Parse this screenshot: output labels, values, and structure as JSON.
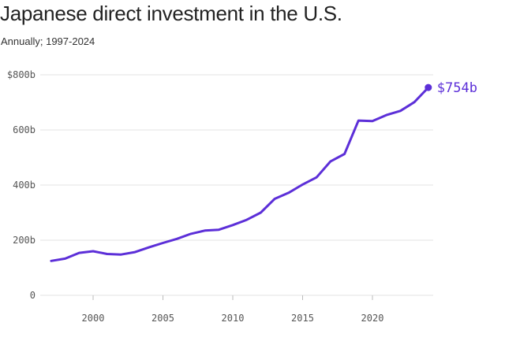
{
  "title": "Japanese direct investment in the U.S.",
  "subtitle": "Annually; 1997-2024",
  "colors": {
    "line": "#5c2fd8",
    "grid": "#e3e3e3",
    "text": "#555555"
  },
  "chart_data": {
    "type": "line",
    "title": "Japanese direct investment in the U.S.",
    "subtitle": "Annually; 1997-2024",
    "xlabel": "",
    "ylabel": "",
    "xlim": [
      1997,
      2024
    ],
    "ylim": [
      0,
      800
    ],
    "grid": true,
    "y_ticks": [
      0,
      200,
      400,
      600,
      800
    ],
    "y_tick_labels": [
      "0",
      "200b",
      "400b",
      "600b",
      "$800b"
    ],
    "x_ticks": [
      2000,
      2005,
      2010,
      2015,
      2020
    ],
    "x_tick_labels": [
      "2000",
      "2005",
      "2010",
      "2015",
      "2020"
    ],
    "series": [
      {
        "name": "Japanese direct investment",
        "x": [
          1997,
          1998,
          1999,
          2000,
          2001,
          2002,
          2003,
          2004,
          2005,
          2006,
          2007,
          2008,
          2009,
          2010,
          2011,
          2012,
          2013,
          2014,
          2015,
          2016,
          2017,
          2018,
          2019,
          2020,
          2021,
          2022,
          2023,
          2024
        ],
        "values": [
          125,
          133,
          154,
          160,
          150,
          148,
          157,
          174,
          190,
          205,
          223,
          235,
          238,
          255,
          274,
          300,
          350,
          372,
          402,
          428,
          486,
          513,
          634,
          632,
          654,
          669,
          701,
          754
        ]
      }
    ],
    "annotation": {
      "x": 2024,
      "y": 754,
      "label": "$754b"
    }
  }
}
